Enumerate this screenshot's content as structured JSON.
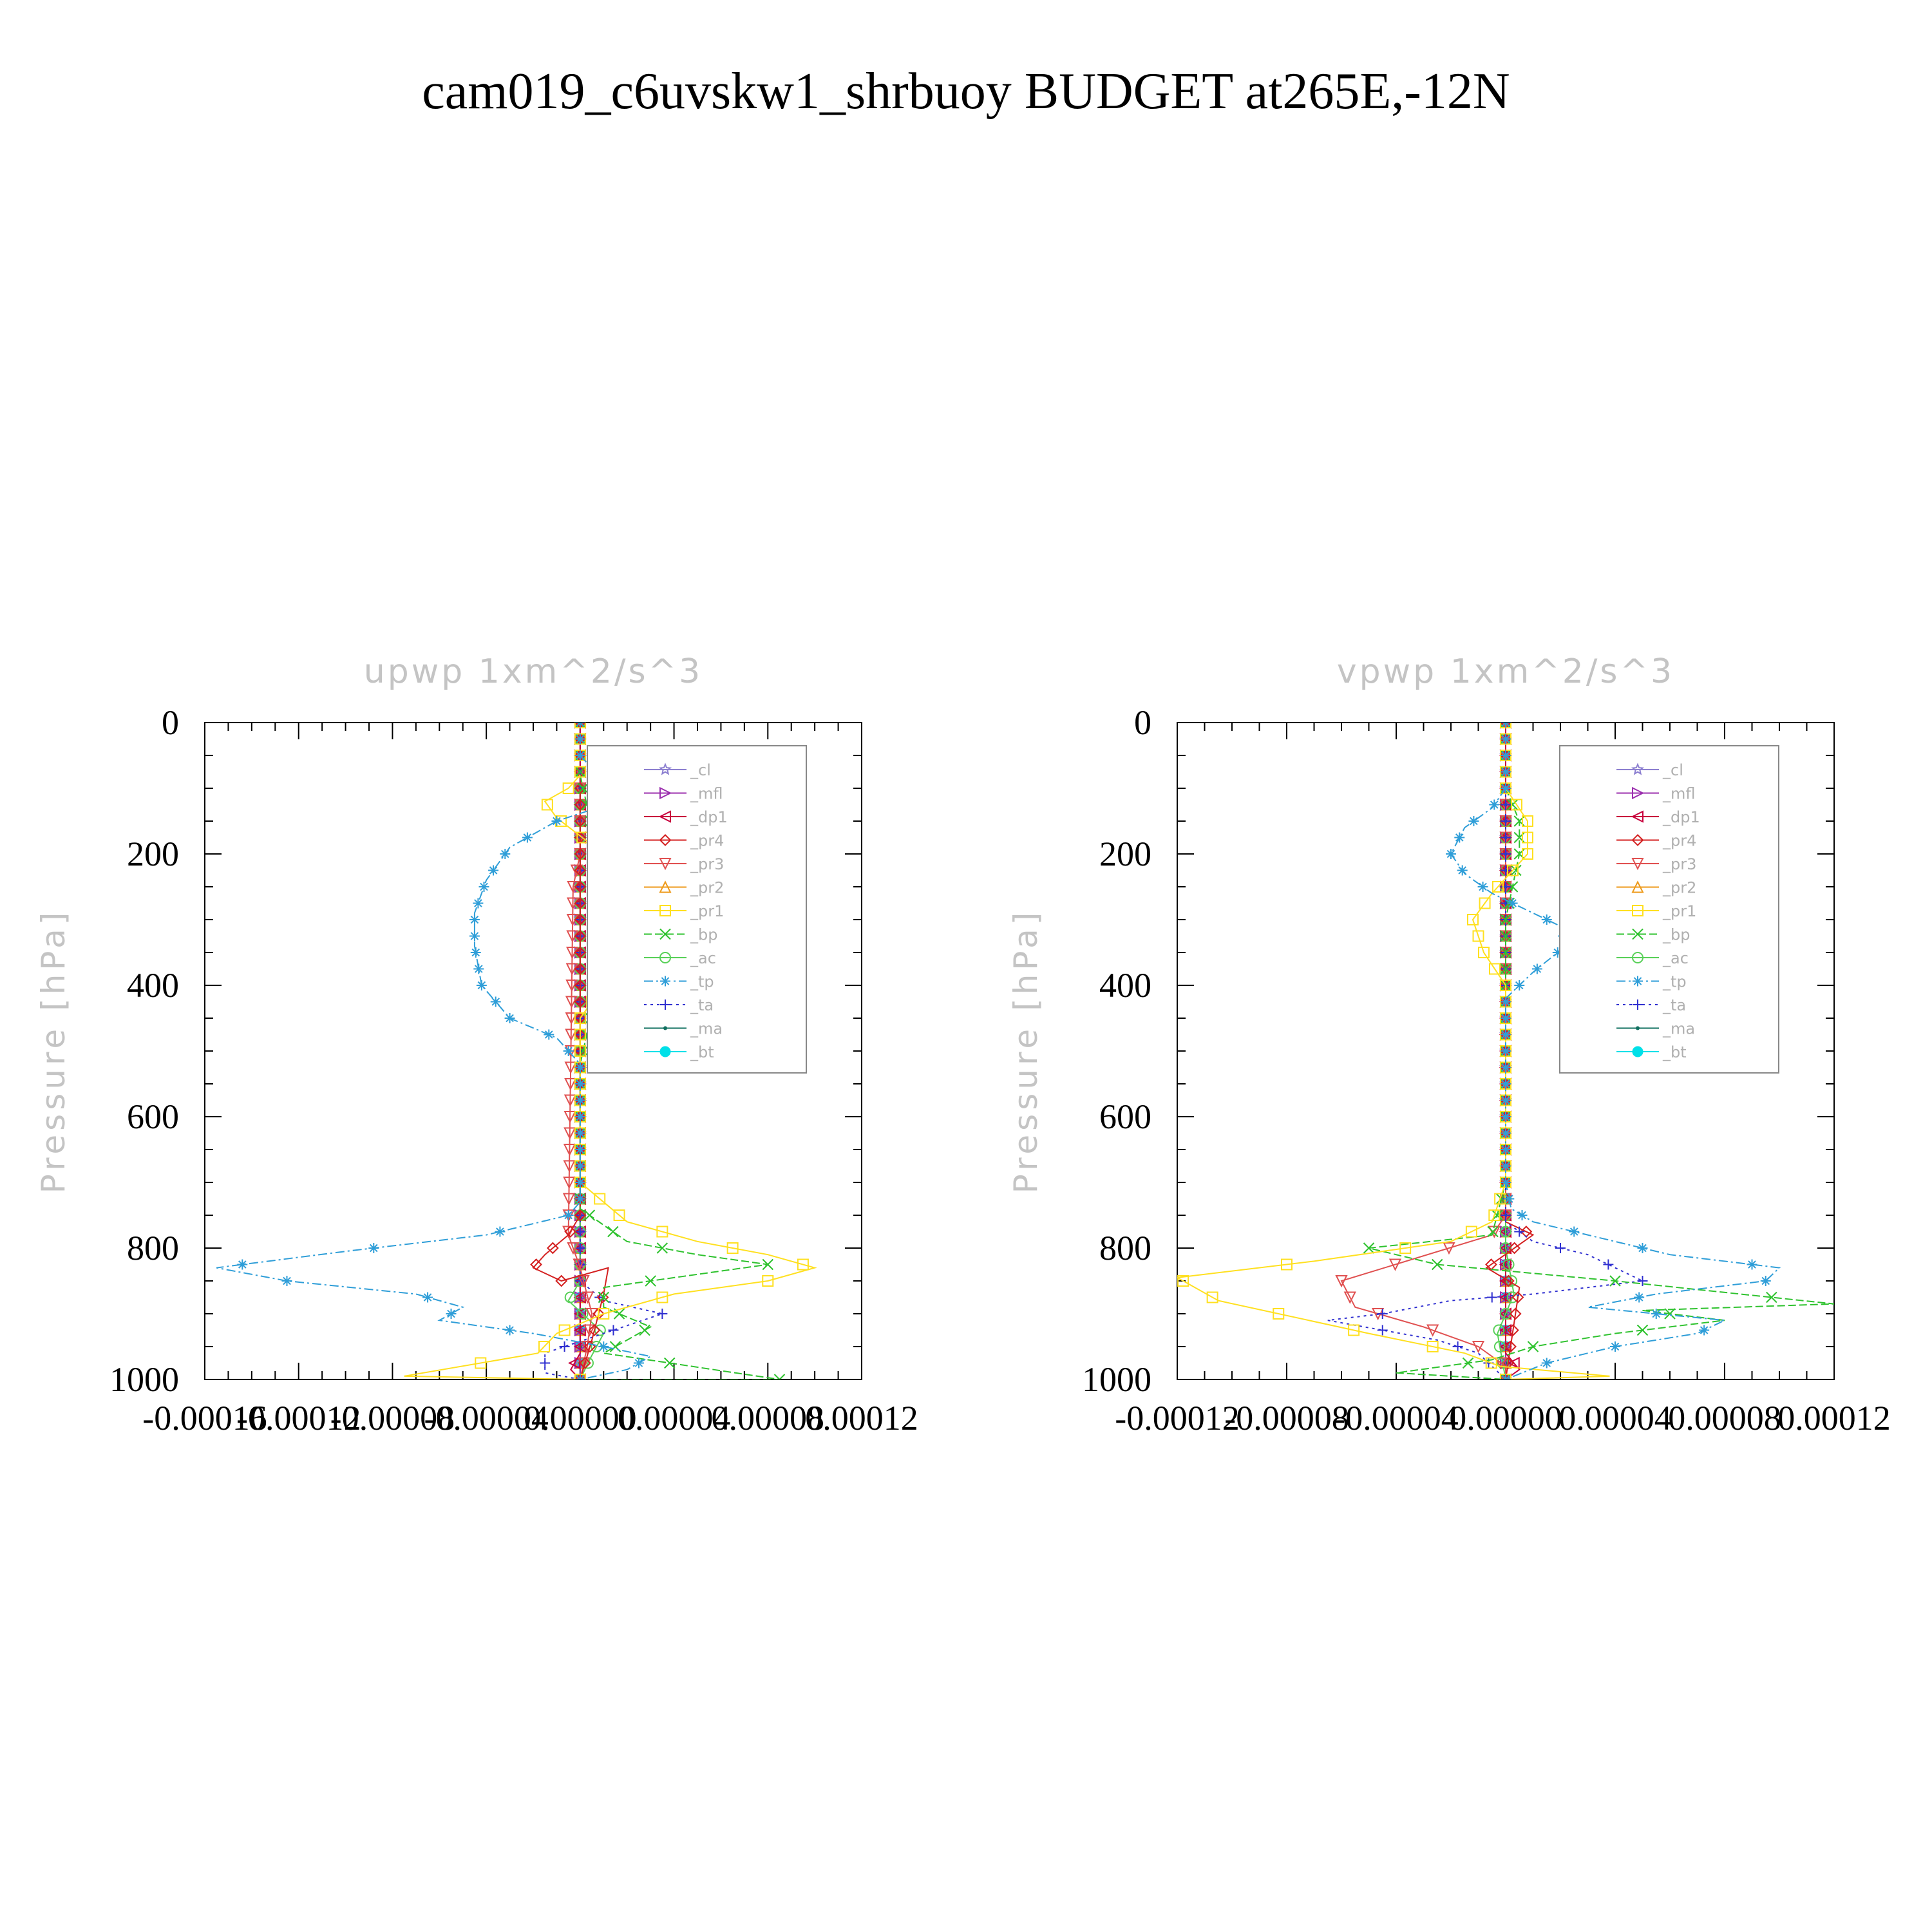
{
  "title": "cam019_c6uvskw1_shrbuoy  BUDGET at265E,-12N",
  "ylabel": "Pressure [hPa]",
  "colors": {
    "cl": "#8c7fd0",
    "mfl": "#9b2fae",
    "dp1": "#c8003c",
    "pr4": "#d42020",
    "pr3": "#e05050",
    "pr2": "#ee9a1a",
    "pr1": "#ffe020",
    "bp": "#2ec22e",
    "ac": "#58d058",
    "tp": "#2f9ed8",
    "ta": "#3030d0",
    "ma": "#107060",
    "bt": "#00e0e8"
  },
  "legend": [
    "_cl",
    "_mfl",
    "_dp1",
    "_pr4",
    "_pr3",
    "_pr2",
    "_pr1",
    "_bp",
    "_ac",
    "_tp",
    "_ta",
    "_ma",
    "_bt"
  ],
  "chart_data": [
    {
      "type": "line",
      "title": "upwp    1xm^2/s^3",
      "ylabel": "Pressure [hPa]",
      "xlim": [
        -0.00016,
        0.00012
      ],
      "ylim": [
        1000,
        0
      ],
      "xticks": [
        "-0.00016",
        "-0.00012",
        "-0.00008",
        "-0.00004",
        "0.00000",
        "0.00004",
        "0.00008",
        "0.00012"
      ],
      "yticks": [
        "0",
        "200",
        "400",
        "600",
        "800",
        "1000"
      ],
      "grid": false,
      "legend_position": "top-right",
      "series": [
        {
          "name": "_tp",
          "x": [
            0,
            1e-05,
            2e-05,
            -1e-05,
            -3e-05,
            -4e-05,
            -4.5e-05,
            -4.5e-05,
            -4.2e-05,
            -3e-05,
            -1e-05,
            0,
            0,
            0,
            0,
            -5e-06,
            -4e-05,
            -0.0001,
            -0.000155,
            -0.000125,
            -7e-05,
            -5e-05,
            -6e-05,
            -2e-05,
            1e-05,
            3e-05,
            2e-05,
            0
          ],
          "y": [
            50,
            90,
            115,
            150,
            190,
            240,
            290,
            340,
            400,
            450,
            480,
            520,
            600,
            700,
            730,
            750,
            780,
            805,
            830,
            850,
            870,
            890,
            910,
            930,
            950,
            965,
            985,
            1000
          ]
        },
        {
          "name": "_pr1",
          "x": [
            0,
            -5e-06,
            -1.5e-05,
            -1e-05,
            1e-05,
            2e-05,
            2e-05,
            1e-05,
            0,
            0,
            0,
            2e-05,
            5e-05,
            8e-05,
            0.0001,
            8e-05,
            4e-05,
            1e-05,
            -1e-05,
            -1.8e-05,
            -7.5e-05,
            0
          ],
          "y": [
            80,
            100,
            120,
            145,
            200,
            260,
            330,
            400,
            450,
            550,
            700,
            760,
            790,
            810,
            830,
            850,
            870,
            900,
            930,
            960,
            995,
            1000
          ]
        },
        {
          "name": "_bp",
          "x": [
            0,
            5e-06,
            1e-05,
            1.2e-05,
            1e-05,
            5e-06,
            0,
            0,
            2e-05,
            5e-05,
            8e-05,
            4e-05,
            1e-05,
            1e-05,
            3e-05,
            1e-05,
            8.5e-05,
            0
          ],
          "y": [
            80,
            160,
            220,
            300,
            380,
            440,
            520,
            740,
            790,
            810,
            825,
            845,
            860,
            890,
            920,
            960,
            1000,
            1000
          ]
        },
        {
          "name": "_pr4",
          "x": [
            0,
            0,
            -5e-06,
            -1.5e-05,
            -2e-05,
            -8e-06,
            1.2e-05,
            1e-05,
            5e-06,
            0
          ],
          "y": [
            100,
            750,
            780,
            810,
            830,
            850,
            830,
            870,
            940,
            1000
          ]
        },
        {
          "name": "_pr3",
          "x": [
            0,
            -3e-06,
            -5e-06,
            0,
            5e-06,
            3e-06,
            0
          ],
          "y": [
            200,
            250,
            780,
            830,
            900,
            950,
            1000
          ]
        },
        {
          "name": "_ta",
          "x": [
            0,
            0,
            1e-05,
            3.5e-05,
            1e-05,
            -1.5e-05,
            -1.5e-05,
            0
          ],
          "y": [
            100,
            850,
            880,
            900,
            930,
            960,
            990,
            1000
          ]
        },
        {
          "name": "_ac",
          "x": [
            0,
            0,
            -5e-06,
            1e-05,
            4e-06,
            0
          ],
          "y": [
            100,
            850,
            880,
            930,
            970,
            1000
          ]
        },
        {
          "name": "_dp1",
          "x": [
            0,
            0,
            -4e-06,
            0
          ],
          "y": [
            0,
            960,
            985,
            1000
          ]
        },
        {
          "name": "_mfl",
          "x": [
            0,
            0,
            0
          ],
          "y": [
            0,
            500,
            1000
          ]
        },
        {
          "name": "_cl",
          "x": [
            0,
            0,
            0
          ],
          "y": [
            0,
            500,
            1000
          ]
        },
        {
          "name": "_pr2",
          "x": [
            0,
            0,
            0
          ],
          "y": [
            0,
            500,
            1000
          ]
        },
        {
          "name": "_ma",
          "x": [
            0,
            0,
            0
          ],
          "y": [
            0,
            500,
            1000
          ]
        },
        {
          "name": "_bt",
          "x": [
            0,
            0,
            0
          ],
          "y": [
            0,
            500,
            1000
          ]
        }
      ]
    },
    {
      "type": "line",
      "title": "vpwp    1xm^2/s^3",
      "ylabel": "Pressure [hPa]",
      "xlim": [
        -0.00012,
        0.00012
      ],
      "ylim": [
        1000,
        0
      ],
      "xticks": [
        "-0.00012",
        "-0.00008",
        "-0.00004",
        "0.00000",
        "0.00004",
        "0.00008",
        "0.00012"
      ],
      "yticks": [
        "0",
        "200",
        "400",
        "600",
        "800",
        "1000"
      ],
      "grid": false,
      "legend_position": "top-right",
      "series": [
        {
          "name": "_tp",
          "x": [
            0,
            -5e-06,
            -1.5e-05,
            -2e-05,
            -1.5e-05,
            -5e-06,
            1e-05,
            2e-05,
            2.2e-05,
            1e-05,
            0,
            0,
            0,
            2e-06,
            1e-05,
            3e-05,
            6e-05,
            0.0001,
            9.5e-05,
            5.5e-05,
            3e-05,
            8e-05,
            7e-05,
            4e-05,
            3e-05,
            1.5e-05,
            0
          ],
          "y": [
            100,
            130,
            160,
            200,
            230,
            260,
            290,
            310,
            340,
            380,
            420,
            500,
            700,
            740,
            760,
            780,
            810,
            830,
            850,
            870,
            890,
            910,
            930,
            950,
            960,
            975,
            1000
          ]
        },
        {
          "name": "_pr1",
          "x": [
            0,
            8e-06,
            8e-06,
            -5e-06,
            -1.2e-05,
            -8e-06,
            0,
            0,
            -5e-06,
            -2e-05,
            -7e-05,
            -0.00012,
            -0.000105,
            -5e-05,
            -1.5e-05,
            -2e-06,
            3.8e-05,
            0
          ],
          "y": [
            100,
            150,
            200,
            260,
            300,
            350,
            400,
            700,
            760,
            790,
            820,
            845,
            880,
            930,
            960,
            980,
            995,
            1000
          ]
        },
        {
          "name": "_bp",
          "x": [
            0,
            5e-06,
            5e-06,
            0,
            0,
            -5e-06,
            -5e-05,
            -2.5e-05,
            4e-05,
            0.00012,
            5e-05,
            8e-05,
            4e-05,
            1e-05,
            -5e-06,
            -4e-05,
            0
          ],
          "y": [
            100,
            150,
            200,
            300,
            700,
            780,
            800,
            825,
            850,
            885,
            895,
            910,
            930,
            950,
            970,
            990,
            1000
          ]
        },
        {
          "name": "_ta",
          "x": [
            0,
            0,
            1e-05,
            3e-05,
            5e-05,
            1e-05,
            -2e-05,
            -4.5e-05,
            -6.5e-05,
            -4.5e-05,
            -2.5e-05,
            -1e-05,
            0
          ],
          "y": [
            100,
            760,
            790,
            810,
            850,
            870,
            880,
            900,
            910,
            925,
            940,
            960,
            1000
          ]
        },
        {
          "name": "_pr3",
          "x": [
            0,
            0,
            -5e-06,
            -6e-05,
            -5.5e-05,
            -3e-05,
            -1e-05,
            0,
            0
          ],
          "y": [
            100,
            750,
            780,
            850,
            890,
            920,
            950,
            980,
            1000
          ]
        },
        {
          "name": "_pr4",
          "x": [
            0,
            0,
            1e-05,
            -7e-06,
            5e-06,
            0
          ],
          "y": [
            100,
            760,
            780,
            830,
            860,
            1000
          ]
        },
        {
          "name": "_ac",
          "x": [
            0,
            0,
            3e-06,
            -3e-06,
            0
          ],
          "y": [
            100,
            800,
            870,
            930,
            1000
          ]
        },
        {
          "name": "_dp1",
          "x": [
            0,
            0,
            5e-06,
            0
          ],
          "y": [
            0,
            960,
            985,
            1000
          ]
        },
        {
          "name": "_mfl",
          "x": [
            0,
            0,
            0
          ],
          "y": [
            0,
            500,
            1000
          ]
        },
        {
          "name": "_cl",
          "x": [
            0,
            0,
            0
          ],
          "y": [
            0,
            500,
            1000
          ]
        },
        {
          "name": "_pr2",
          "x": [
            0,
            0,
            0
          ],
          "y": [
            0,
            500,
            1000
          ]
        },
        {
          "name": "_ma",
          "x": [
            0,
            0,
            0
          ],
          "y": [
            0,
            500,
            1000
          ]
        },
        {
          "name": "_bt",
          "x": [
            0,
            0,
            0
          ],
          "y": [
            0,
            500,
            1000
          ]
        }
      ]
    }
  ]
}
